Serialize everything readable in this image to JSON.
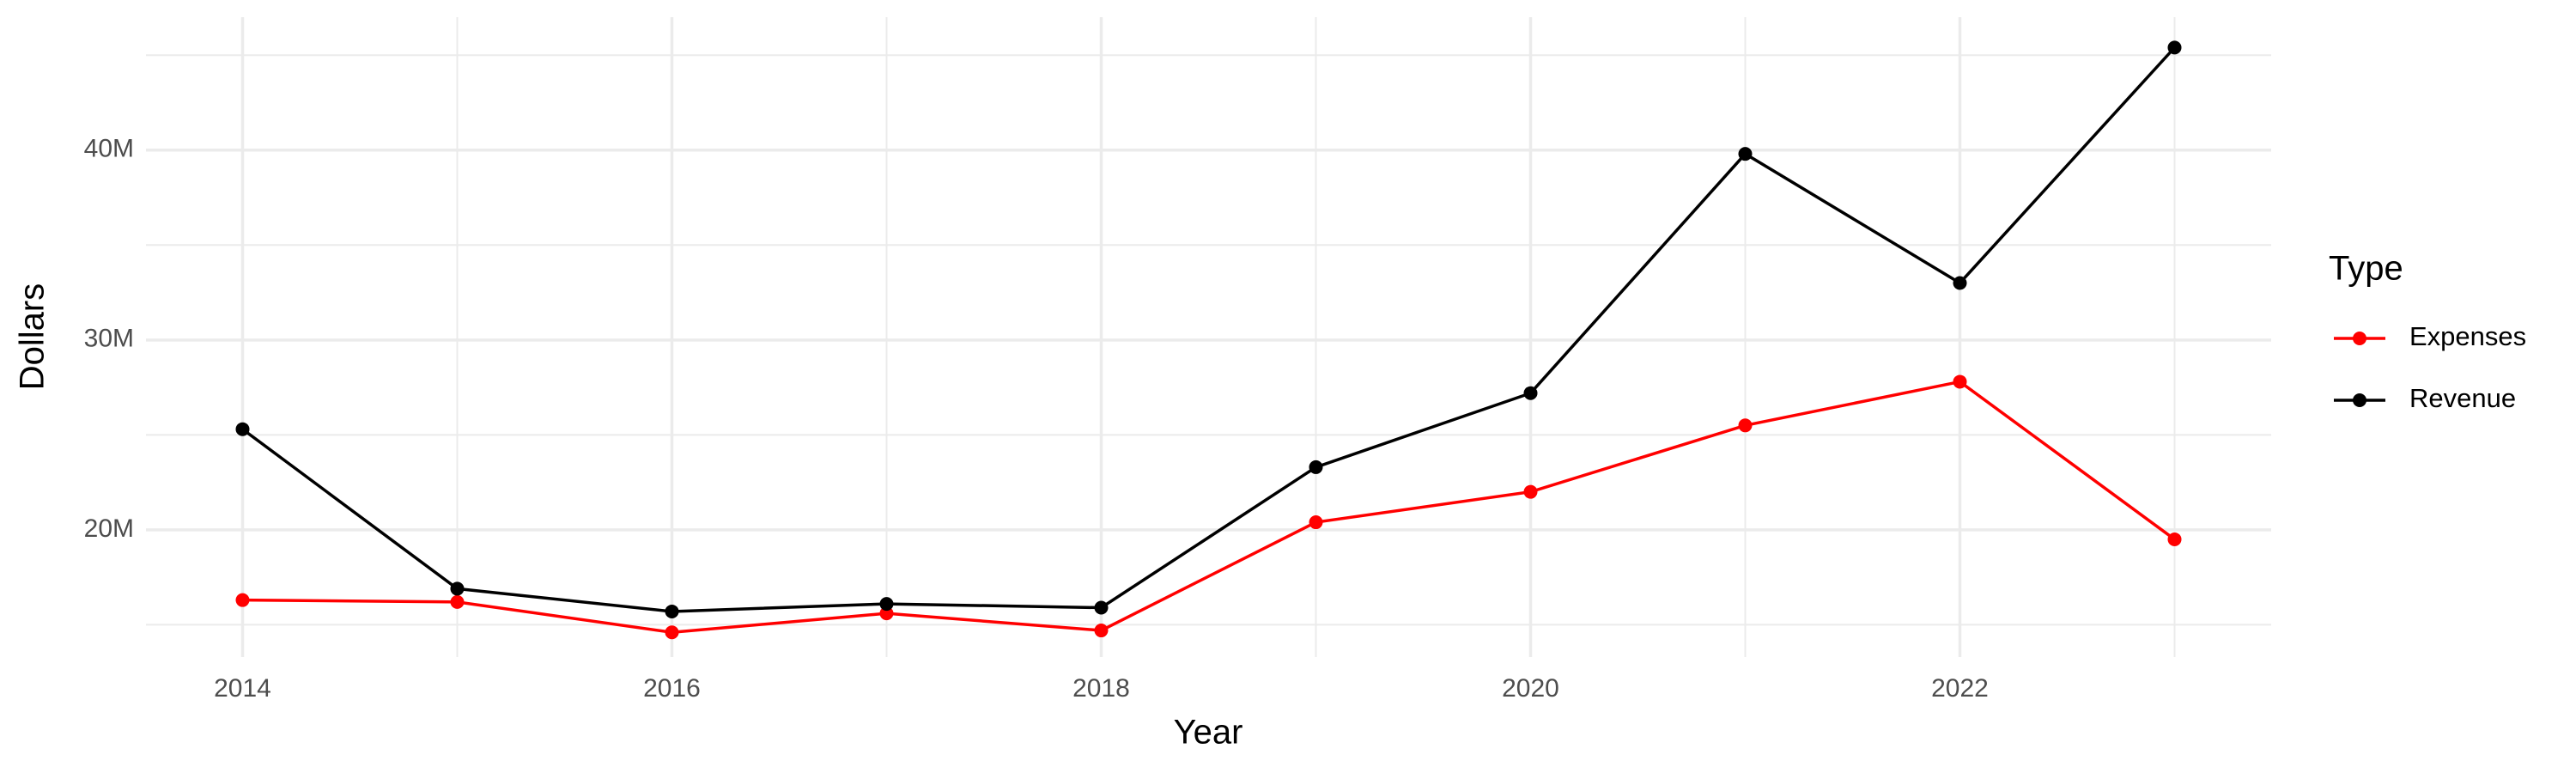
{
  "chart_data": {
    "type": "line",
    "x_label": "Year",
    "y_label": "Dollars",
    "legend_title": "Type",
    "legend": "right",
    "grid": true,
    "x": [
      2014,
      2015,
      2016,
      2017,
      2018,
      2019,
      2020,
      2021,
      2022,
      2023
    ],
    "series": [
      {
        "name": "Expenses",
        "color": "#ff0000",
        "values": [
          16300000,
          16200000,
          14600000,
          15600000,
          14700000,
          20400000,
          22000000,
          25500000,
          27800000,
          19500000
        ]
      },
      {
        "name": "Revenue",
        "color": "#000000",
        "values": [
          25300000,
          16900000,
          15700000,
          16100000,
          15900000,
          23300000,
          27200000,
          39800000,
          33000000,
          45400000
        ]
      }
    ],
    "xlim": [
      2013.55,
      2023.45
    ],
    "xticks": [
      2014,
      2016,
      2018,
      2020,
      2022
    ],
    "ylim": [
      13300000,
      47000000
    ],
    "yticks": [
      {
        "value": 20000000,
        "label": "20M"
      },
      {
        "value": 30000000,
        "label": "30M"
      },
      {
        "value": 40000000,
        "label": "40M"
      }
    ]
  }
}
